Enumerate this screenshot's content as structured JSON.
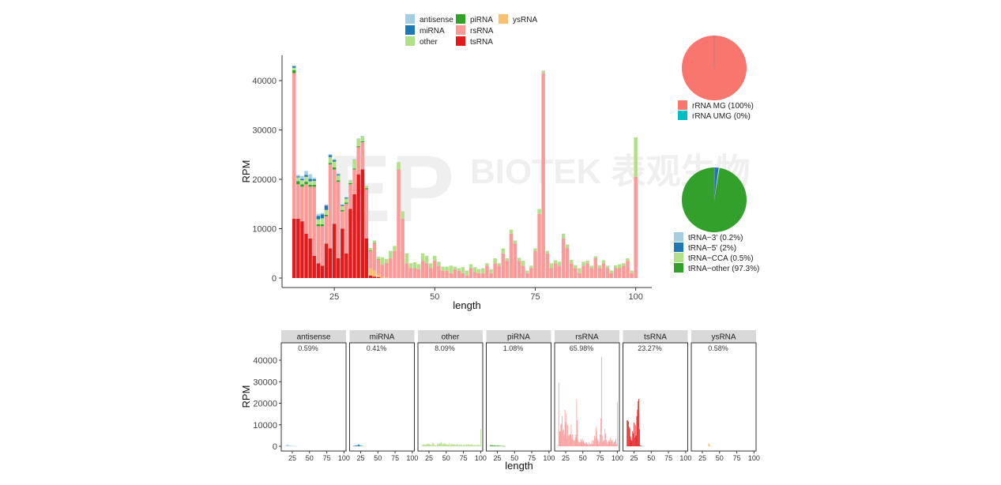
{
  "chart_data": [
    {
      "type": "bar",
      "stacked": true,
      "xlabel": "length",
      "ylabel": "RPM",
      "xticks": [
        25,
        50,
        75,
        100
      ],
      "yticks": [
        0,
        10000,
        20000,
        30000,
        40000
      ],
      "xlim": [
        12,
        104
      ],
      "ylim": [
        0,
        45000
      ],
      "legend": "top",
      "x": [
        15,
        16,
        17,
        18,
        19,
        20,
        21,
        22,
        23,
        24,
        25,
        26,
        27,
        28,
        29,
        30,
        31,
        32,
        33,
        34,
        35,
        36,
        37,
        38,
        39,
        40,
        41,
        42,
        43,
        44,
        45,
        46,
        47,
        48,
        49,
        50,
        51,
        52,
        53,
        54,
        55,
        56,
        57,
        58,
        59,
        60,
        61,
        62,
        63,
        64,
        65,
        66,
        67,
        68,
        69,
        70,
        71,
        72,
        73,
        74,
        75,
        76,
        77,
        78,
        79,
        80,
        81,
        82,
        83,
        84,
        85,
        86,
        87,
        88,
        89,
        90,
        91,
        92,
        93,
        94,
        95,
        96,
        97,
        98,
        99,
        100
      ],
      "series": [
        {
          "name": "tsRNA",
          "color": "#e31a1c",
          "values": [
            12000,
            12000,
            11500,
            9000,
            8000,
            4500,
            3000,
            2500,
            7000,
            6000,
            11000,
            4000,
            10000,
            5000,
            14000,
            17000,
            21000,
            22000,
            8000,
            500,
            300,
            200,
            0,
            0,
            0,
            0,
            0,
            0,
            0,
            0,
            0,
            0,
            0,
            0,
            0,
            0,
            0,
            0,
            0,
            0,
            0,
            0,
            0,
            0,
            0,
            0,
            0,
            0,
            0,
            0,
            0,
            0,
            0,
            0,
            0,
            0,
            0,
            0,
            0,
            0,
            0,
            0,
            0,
            0,
            0,
            0,
            0,
            0,
            0,
            0,
            0,
            0,
            0,
            0,
            0,
            0,
            0,
            0,
            0,
            0,
            0,
            0,
            0,
            0,
            0,
            0
          ]
        },
        {
          "name": "ysRNA",
          "color": "#fdbf6f",
          "values": [
            0,
            0,
            0,
            0,
            0,
            0,
            0,
            0,
            0,
            0,
            0,
            0,
            0,
            0,
            0,
            0,
            0,
            0,
            0,
            1500,
            1200,
            500,
            200,
            100,
            0,
            0,
            0,
            0,
            0,
            0,
            0,
            0,
            0,
            0,
            0,
            0,
            0,
            0,
            0,
            0,
            0,
            0,
            0,
            0,
            0,
            0,
            0,
            0,
            0,
            0,
            0,
            0,
            0,
            0,
            0,
            0,
            0,
            0,
            0,
            0,
            0,
            0,
            0,
            0,
            0,
            0,
            0,
            0,
            0,
            0,
            0,
            0,
            0,
            0,
            0,
            0,
            0,
            0,
            0,
            0,
            0,
            0,
            0,
            0,
            0,
            0
          ]
        },
        {
          "name": "rsRNA",
          "color": "#fb9a99",
          "values": [
            29500,
            7000,
            7000,
            10000,
            10500,
            14000,
            7500,
            8000,
            5500,
            17000,
            11000,
            15500,
            3500,
            10000,
            5000,
            5000,
            5500,
            5500,
            10000,
            3500,
            5500,
            3000,
            2500,
            3000,
            4000,
            5500,
            22000,
            12000,
            3000,
            2000,
            2000,
            1800,
            3500,
            3000,
            2000,
            3500,
            2500,
            1500,
            1500,
            1000,
            1800,
            1500,
            1000,
            500,
            2000,
            1200,
            1000,
            1000,
            2500,
            1000,
            3000,
            2500,
            5000,
            3500,
            9000,
            7000,
            3500,
            2500,
            1000,
            2000,
            5500,
            13000,
            41500,
            5000,
            2000,
            3000,
            2500,
            8000,
            6000,
            3000,
            2000,
            1000,
            2500,
            3000,
            2000,
            4000,
            2000,
            3000,
            2000,
            1000,
            2000,
            2000,
            2500,
            3500,
            1000,
            20500
          ]
        },
        {
          "name": "piRNA",
          "color": "#33a02c",
          "values": [
            600,
            600,
            500,
            500,
            400,
            400,
            400,
            400,
            300,
            300,
            400,
            300,
            300,
            300,
            200,
            200,
            200,
            200,
            200,
            100,
            100,
            100,
            0,
            0,
            0,
            0,
            0,
            0,
            0,
            0,
            0,
            0,
            0,
            0,
            0,
            0,
            0,
            0,
            0,
            0,
            0,
            0,
            0,
            0,
            0,
            0,
            0,
            0,
            0,
            0,
            0,
            0,
            0,
            0,
            0,
            0,
            0,
            0,
            0,
            0,
            0,
            0,
            0,
            0,
            0,
            0,
            0,
            0,
            0,
            0,
            0,
            0,
            0,
            0,
            0,
            0,
            0,
            0,
            0,
            0,
            0,
            0,
            0,
            0,
            0,
            0
          ]
        },
        {
          "name": "other",
          "color": "#b2df8a",
          "values": [
            500,
            800,
            800,
            1000,
            700,
            800,
            1000,
            1200,
            1000,
            1200,
            1200,
            1000,
            800,
            800,
            600,
            1800,
            1500,
            1000,
            500,
            500,
            500,
            500,
            1500,
            800,
            1500,
            1000,
            1500,
            1500,
            2000,
            1000,
            1200,
            1000,
            1500,
            1500,
            1000,
            1000,
            800,
            800,
            800,
            1500,
            500,
            500,
            1200,
            1000,
            800,
            1000,
            800,
            1000,
            500,
            800,
            1000,
            500,
            1000,
            500,
            800,
            600,
            600,
            1000,
            500,
            500,
            500,
            1000,
            500,
            500,
            1000,
            600,
            800,
            1000,
            800,
            700,
            600,
            1000,
            800,
            500,
            500,
            400,
            600,
            600,
            500,
            500,
            600,
            800,
            500,
            500,
            500,
            8000
          ]
        },
        {
          "name": "miRNA",
          "color": "#1f78b4",
          "values": [
            300,
            200,
            300,
            400,
            500,
            300,
            700,
            800,
            900,
            400,
            300,
            200,
            200,
            200,
            0,
            0,
            0,
            0,
            0,
            0,
            0,
            0,
            0,
            0,
            0,
            0,
            0,
            0,
            0,
            0,
            0,
            0,
            0,
            0,
            0,
            0,
            0,
            0,
            0,
            0,
            0,
            0,
            0,
            0,
            0,
            0,
            0,
            0,
            0,
            0,
            0,
            0,
            0,
            0,
            0,
            0,
            0,
            0,
            0,
            0,
            0,
            0,
            0,
            0,
            0,
            0,
            0,
            0,
            0,
            0,
            0,
            0,
            0,
            0,
            0,
            0,
            0,
            0,
            0,
            0,
            0,
            0,
            0,
            0,
            0,
            0
          ]
        },
        {
          "name": "antisense",
          "color": "#a6cee3",
          "values": [
            200,
            300,
            600,
            800,
            900,
            300,
            400,
            300,
            200,
            200,
            200,
            200,
            100,
            100,
            100,
            100,
            100,
            100,
            0,
            0,
            0,
            0,
            0,
            0,
            0,
            0,
            0,
            0,
            0,
            0,
            0,
            0,
            0,
            0,
            0,
            0,
            0,
            0,
            0,
            0,
            0,
            0,
            0,
            0,
            0,
            0,
            0,
            0,
            0,
            0,
            0,
            0,
            0,
            0,
            0,
            0,
            0,
            0,
            0,
            0,
            0,
            0,
            0,
            0,
            0,
            0,
            0,
            0,
            0,
            0,
            0,
            0,
            0,
            0,
            0,
            0,
            0,
            0,
            0,
            0,
            0,
            0,
            0,
            0,
            0,
            0
          ]
        }
      ],
      "legend_items": [
        {
          "name": "antisense",
          "color": "#a6cee3"
        },
        {
          "name": "miRNA",
          "color": "#1f78b4"
        },
        {
          "name": "other",
          "color": "#b2df8a"
        },
        {
          "name": "piRNA",
          "color": "#33a02c"
        },
        {
          "name": "rsRNA",
          "color": "#fb9a99"
        },
        {
          "name": "tsRNA",
          "color": "#e31a1c"
        },
        {
          "name": "ysRNA",
          "color": "#fdbf6f"
        }
      ]
    },
    {
      "type": "pie",
      "slices": [
        {
          "label": "rRNA MG (100%)",
          "value": 100,
          "color": "#f8766d"
        },
        {
          "label": "rRNA UMG (0%)",
          "value": 0,
          "color": "#00bfc4"
        }
      ]
    },
    {
      "type": "pie",
      "slices": [
        {
          "label": "tRNA−3' (0.2%)",
          "value": 0.2,
          "color": "#a6cee3"
        },
        {
          "label": "tRNA−5' (2%)",
          "value": 2,
          "color": "#1f78b4"
        },
        {
          "label": "tRNA−CCA (0.5%)",
          "value": 0.5,
          "color": "#b2df8a"
        },
        {
          "label": "tRNA−other (97.3%)",
          "value": 97.3,
          "color": "#33a02c"
        }
      ]
    },
    {
      "type": "bar",
      "faceted": true,
      "xlabel": "length",
      "ylabel": "RPM",
      "xticks": [
        25,
        50,
        75,
        100
      ],
      "yticks": [
        0,
        10000,
        20000,
        30000,
        40000
      ],
      "facets": [
        {
          "name": "antisense",
          "percent": "0.59%",
          "color": "#a6cee3"
        },
        {
          "name": "miRNA",
          "percent": "0.41%",
          "color": "#1f78b4"
        },
        {
          "name": "other",
          "percent": "8.09%",
          "color": "#b2df8a"
        },
        {
          "name": "piRNA",
          "percent": "1.08%",
          "color": "#33a02c"
        },
        {
          "name": "rsRNA",
          "percent": "65.98%",
          "color": "#fb9a99"
        },
        {
          "name": "tsRNA",
          "percent": "23.27%",
          "color": "#e31a1c"
        },
        {
          "name": "ysRNA",
          "percent": "0.58%",
          "color": "#fdbf6f"
        }
      ]
    }
  ],
  "watermark": "BIOTEK 表观生物"
}
